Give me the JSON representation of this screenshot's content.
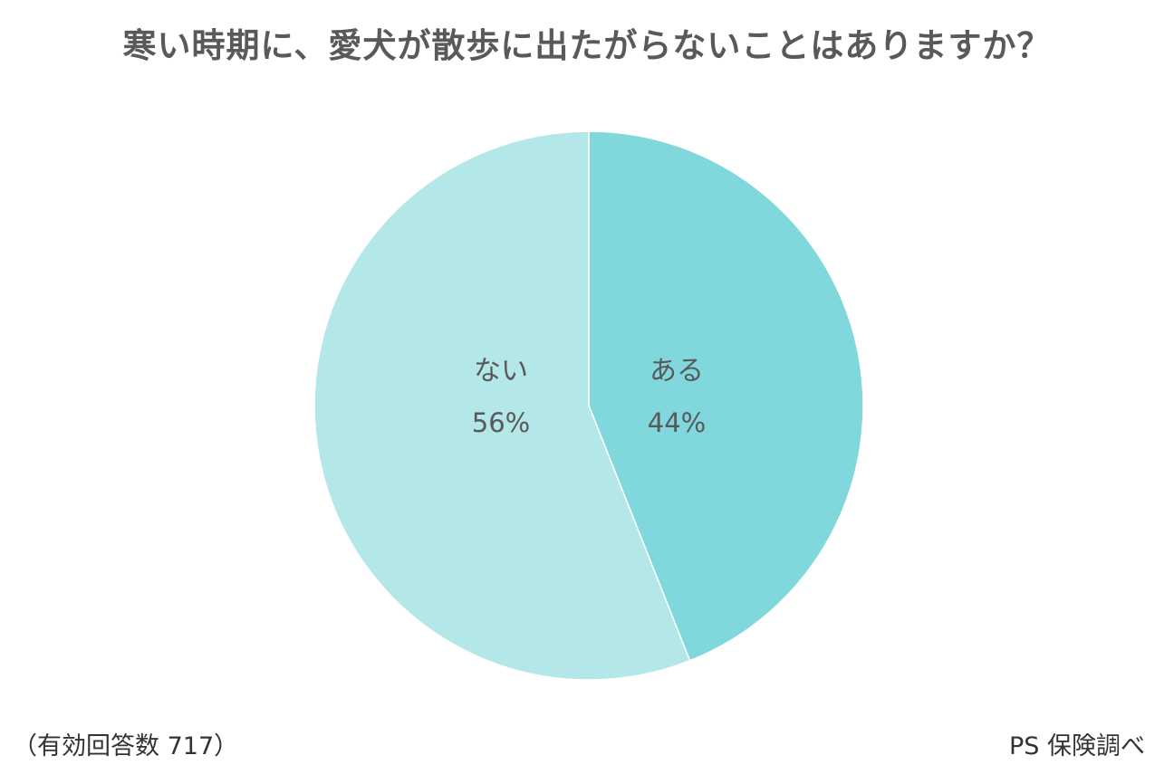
{
  "title": "寒い時期に、愛犬が散歩に出たがらないことはありますか？",
  "footnote_left": "（有効回答数 717）",
  "footnote_right": "PS 保険調べ",
  "colors": {
    "text": "#595959",
    "slice_aru": "#80d8dc",
    "slice_nai": "#b4e7e8",
    "divider": "#ffffff"
  },
  "chart_data": {
    "type": "pie",
    "title": "寒い時期に、愛犬が散歩に出たがらないことはありますか？",
    "slices": [
      {
        "label": "ある",
        "value": 44,
        "display": "44%",
        "color": "#80d8dc"
      },
      {
        "label": "ない",
        "value": 56,
        "display": "56%",
        "color": "#b4e7e8"
      }
    ],
    "start_angle": "12 o'clock",
    "direction": "clockwise",
    "legend": "none",
    "note": "（有効回答数 717）",
    "source": "PS 保険調べ"
  }
}
